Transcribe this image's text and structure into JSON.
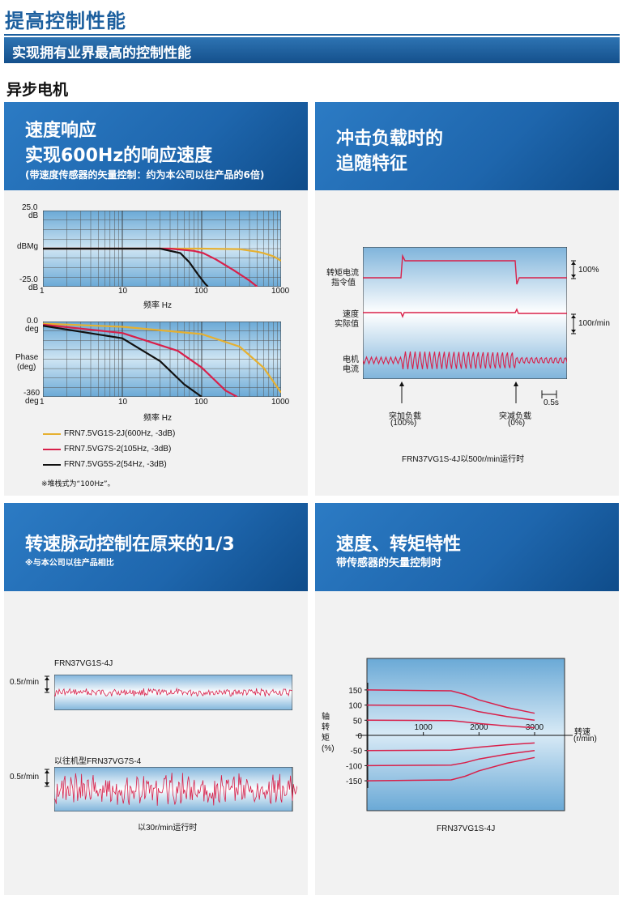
{
  "page": {
    "title": "提高控制性能",
    "section_bar": "实现拥有业界最高的控制性能",
    "sub_heading": "异步电机"
  },
  "panels": {
    "speed_response": {
      "title1": "速度响应",
      "title2": "实现600Hz的响应速度",
      "subtitle": "(带速度传感器的矢量控制：约为本公司以往产品的6倍)",
      "gain_top": "25.0",
      "gain_top_unit": "dB",
      "gain_mid": "dBMg",
      "gain_bottom": "-25.0",
      "gain_bottom_unit": "dB",
      "phase_top": "0.0",
      "phase_top_unit": "deg",
      "phase_mid1": "Phase",
      "phase_mid2": "(deg)",
      "phase_bottom": "-360",
      "phase_bottom_unit": "deg",
      "x_ticks": [
        "1",
        "10",
        "100",
        "1000"
      ],
      "x_label": "频率 Hz",
      "legend": [
        {
          "label": "FRN7.5VG1S-2J(600Hz, -3dB)",
          "color": "#e6b030"
        },
        {
          "label": "FRN7.5VG7S-2(105Hz, -3dB)",
          "color": "#d8204a"
        },
        {
          "label": "FRN7.5VG5S-2(54Hz, -3dB)",
          "color": "#111111"
        }
      ],
      "note": "※堆栈式为“100Hz”。"
    },
    "impact_load": {
      "title1": "冲击负载时的",
      "title2": "追随特征",
      "trace1_a": "转矩电流",
      "trace1_b": "指令值",
      "trace2_a": "速度",
      "trace2_b": "实际值",
      "trace3_a": "电机",
      "trace3_b": "电流",
      "scale1": "100%",
      "scale2": "100r/min",
      "time_scale": "0.5s",
      "event1_a": "突加负载",
      "event1_b": "(100%)",
      "event2_a": "突减负载",
      "event2_b": "(0%)",
      "caption": "FRN37VG1S-4J以500r/min运行时"
    },
    "ripple": {
      "title1": "转速脉动控制在原来的1/3",
      "subtitle": "※与本公司以往产品相比",
      "trace1_title": "FRN37VG1S-4J",
      "trace1_scale": "0.5r/min",
      "trace2_title": "以往机型FRN37VG7S-4",
      "trace2_scale": "0.5r/min",
      "caption": "以30r/min运行时"
    },
    "torque_speed": {
      "title1": "速度、转矩特性",
      "subtitle": "带传感器的矢量控制时",
      "y_ticks": [
        "150",
        "100",
        "50",
        "0",
        "-50",
        "-100",
        "-150"
      ],
      "x_ticks": [
        "1000",
        "2000",
        "3000"
      ],
      "y_label": "轴转矩(%)",
      "x_label1": "转速",
      "x_label2": "(r/min)",
      "caption": "FRN37VG1S-4J"
    }
  },
  "chart_data": [
    {
      "type": "line",
      "title": "",
      "xlabel": "频率 Hz",
      "ylabel": "dBMg",
      "x_scale": "log",
      "xlim": [
        1,
        1000
      ],
      "ylim": [
        -25,
        25
      ],
      "series": [
        {
          "name": "FRN7.5VG1S-2J(600Hz, -3dB)",
          "x": [
            1,
            100,
            300,
            500,
            600,
            800,
            1000
          ],
          "values": [
            0,
            0,
            -0.3,
            -2,
            -3,
            -5,
            -8
          ]
        },
        {
          "name": "FRN7.5VG7S-2(105Hz, -3dB)",
          "x": [
            1,
            40,
            80,
            105,
            150,
            250,
            400,
            500
          ],
          "values": [
            0,
            0,
            -1.5,
            -3,
            -7,
            -14,
            -21,
            -25
          ]
        },
        {
          "name": "FRN7.5VG5S-2(54Hz, -3dB)",
          "x": [
            1,
            30,
            54,
            70,
            90,
            110,
            120
          ],
          "values": [
            0,
            0,
            -3,
            -9,
            -17,
            -23,
            -25
          ]
        }
      ]
    },
    {
      "type": "line",
      "title": "",
      "xlabel": "频率 Hz",
      "ylabel": "Phase (deg)",
      "x_scale": "log",
      "xlim": [
        1,
        1000
      ],
      "ylim": [
        -360,
        0
      ],
      "series": [
        {
          "name": "FRN7.5VG1S-2J(600Hz, -3dB)",
          "x": [
            1,
            10,
            100,
            300,
            600,
            1000
          ],
          "values": [
            -10,
            -25,
            -60,
            -120,
            -220,
            -340
          ]
        },
        {
          "name": "FRN7.5VG7S-2(105Hz, -3dB)",
          "x": [
            1,
            10,
            50,
            100,
            200,
            280
          ],
          "values": [
            -15,
            -55,
            -140,
            -220,
            -330,
            -360
          ]
        },
        {
          "name": "FRN7.5VG5S-2(54Hz, -3dB)",
          "x": [
            1,
            10,
            30,
            60,
            100
          ],
          "values": [
            -20,
            -80,
            -190,
            -300,
            -360
          ]
        }
      ]
    },
    {
      "type": "line",
      "title": "",
      "xlabel": "转速 (r/min)",
      "ylabel": "轴转矩(%)",
      "xlim": [
        0,
        3000
      ],
      "ylim": [
        -170,
        170
      ],
      "series": [
        {
          "x": [
            -700,
            1500,
            1750,
            2000,
            2500,
            3000
          ],
          "values": [
            150,
            147,
            135,
            117,
            92,
            73
          ]
        },
        {
          "x": [
            -700,
            1500,
            1750,
            2000,
            2500,
            3000
          ],
          "values": [
            100,
            98,
            90,
            78,
            62,
            50
          ]
        },
        {
          "x": [
            -700,
            1500,
            1750,
            2000,
            2500,
            3000
          ],
          "values": [
            50,
            49,
            44,
            39,
            31,
            25
          ]
        },
        {
          "x": [
            -700,
            1500,
            1750,
            2000,
            2500,
            3000
          ],
          "values": [
            -50,
            -49,
            -44,
            -39,
            -31,
            -25
          ]
        },
        {
          "x": [
            -700,
            1500,
            1750,
            2000,
            2500,
            3000
          ],
          "values": [
            -100,
            -98,
            -90,
            -78,
            -62,
            -50
          ]
        },
        {
          "x": [
            -700,
            1500,
            1750,
            2000,
            2500,
            3000
          ],
          "values": [
            -150,
            -147,
            -135,
            -117,
            -92,
            -73
          ]
        }
      ]
    }
  ]
}
